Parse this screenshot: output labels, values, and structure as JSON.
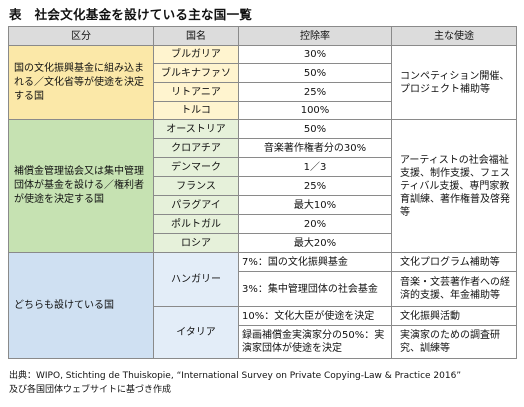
{
  "title": "表　社会文化基金を設けている主な国一覧",
  "headers": [
    "区分",
    "国名",
    "控除率",
    "主な使途"
  ],
  "groups": [
    {
      "category": "国の文化振興基金に組み込まれる／文化省等が使途を決定する国",
      "purpose": "コンペティション開催、プロジェクト補助等",
      "rows": [
        {
          "country": "ブルガリア",
          "rate": "30%"
        },
        {
          "country": "ブルキナファソ",
          "rate": "50%"
        },
        {
          "country": "リトアニア",
          "rate": "25%"
        },
        {
          "country": "トルコ",
          "rate": "100%"
        }
      ]
    },
    {
      "category": "補償金管理協会又は集中管理団体が基金を設ける／権利者が使途を決定する国",
      "purpose": "アーティストの社会福祉支援、制作支援、フェスティバル支援、専門家教育訓練、著作権普及啓発等",
      "rows": [
        {
          "country": "オーストリア",
          "rate": "50%"
        },
        {
          "country": "クロアチア",
          "rate": "音楽著作権者分の30%"
        },
        {
          "country": "デンマーク",
          "rate": "1／3"
        },
        {
          "country": "フランス",
          "rate": "25%"
        },
        {
          "country": "パラグアイ",
          "rate": "最大10%"
        },
        {
          "country": "ポルトガル",
          "rate": "20%"
        },
        {
          "country": "ロシア",
          "rate": "最大20%"
        }
      ]
    },
    {
      "category": "どちらも設けている国",
      "countries": [
        {
          "country": "ハンガリー",
          "rows": [
            {
              "rate": "7%：国の文化振興基金",
              "purpose": "文化プログラム補助等"
            },
            {
              "rate": "3%：集中管理団体の社会基金",
              "purpose": "音楽・文芸著作者への経済的支援、年金補助等"
            }
          ]
        },
        {
          "country": "イタリア",
          "rows": [
            {
              "rate": "10%：文化大臣が使途を決定",
              "purpose": "文化振興活動"
            },
            {
              "rate": "録画補償金実演家分の50%：実演家団体が使途を決定",
              "purpose": "実演家のための調査研究、訓練等"
            }
          ]
        }
      ]
    }
  ],
  "source": {
    "line1": "出典：WIPO, Stichting de Thuiskopie, “International Survey on Private Copying-Law & Practice 2016”",
    "line2": "及び各国団体ウェブサイトに基づき作成"
  }
}
